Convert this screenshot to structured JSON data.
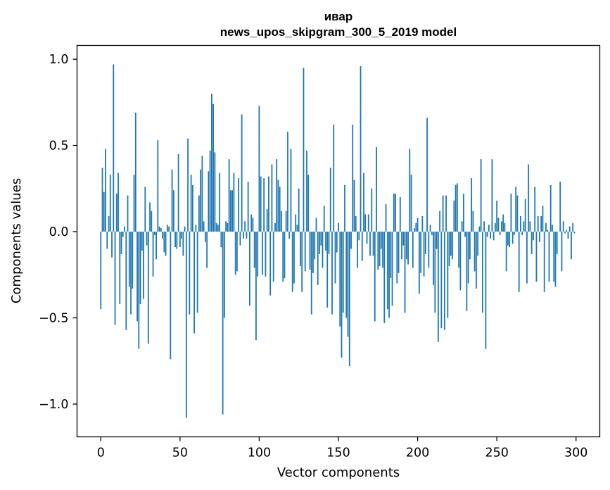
{
  "chart_data": {
    "type": "bar",
    "title": "ивар",
    "subtitle": "news_upos_skipgram_300_5_2019 model",
    "xlabel": "Vector components",
    "ylabel": "Components values",
    "xlim": [
      -15,
      315
    ],
    "ylim": [
      -1.19,
      1.08
    ],
    "xticks": [
      0,
      50,
      100,
      150,
      200,
      250,
      300
    ],
    "xtick_labels": [
      "0",
      "50",
      "100",
      "150",
      "200",
      "250",
      "300"
    ],
    "yticks": [
      1.0,
      0.5,
      0.0,
      -0.5,
      -1.0
    ],
    "ytick_labels": [
      "1.0",
      "0.5",
      "0.0",
      "−0.5",
      "−1.0"
    ],
    "bar_color": "#1f77b4",
    "grid": false,
    "values": [
      -0.45,
      0.37,
      0.23,
      0.48,
      -0.1,
      0.09,
      0.33,
      -0.15,
      0.97,
      -0.54,
      0.22,
      0.34,
      -0.42,
      -0.13,
      -0.03,
      0.03,
      -0.57,
      0.21,
      -0.32,
      -0.48,
      -0.33,
      0.33,
      0.69,
      -0.52,
      -0.68,
      -0.42,
      -0.11,
      -0.39,
      0.26,
      -0.08,
      -0.65,
      0.17,
      0.12,
      -0.26,
      -0.02,
      -0.16,
      0.53,
      0.03,
      0.02,
      -0.04,
      -0.12,
      -0.14,
      0.04,
      0.03,
      -0.74,
      0.36,
      0.24,
      -0.09,
      -0.1,
      0.45,
      -0.09,
      -0.04,
      -0.14,
      0.03,
      -1.08,
      0.54,
      -0.48,
      0.33,
      0.27,
      -0.59,
      0.04,
      -0.47,
      0.21,
      0.36,
      0.44,
      0.06,
      -0.06,
      -0.21,
      0.35,
      0.47,
      0.8,
      0.74,
      0.46,
      0.05,
      0.04,
      0.34,
      -0.09,
      -1.06,
      -0.5,
      0.06,
      0.05,
      0.42,
      0.24,
      0.24,
      0.34,
      -0.25,
      -0.23,
      0.31,
      -0.08,
      0.68,
      -0.04,
      0.06,
      -0.04,
      0.29,
      -0.43,
      0.1,
      0.08,
      -0.21,
      -0.63,
      -0.26,
      0.73,
      0.32,
      -0.25,
      0.31,
      -0.26,
      0.13,
      0.32,
      -0.37,
      0.39,
      -0.29,
      0.05,
      0.42,
      0.3,
      0.26,
      0.12,
      -0.29,
      -0.27,
      0.12,
      0.58,
      -0.04,
      0.48,
      -0.35,
      -0.3,
      0.1,
      0.04,
      0.25,
      -0.2,
      -0.35,
      0.95,
      -0.23,
      0.47,
      0.33,
      -0.22,
      -0.48,
      -0.24,
      -0.16,
      0.08,
      -0.31,
      -0.13,
      -0.08,
      -0.21,
      0.15,
      -0.11,
      -0.44,
      -0.13,
      0.37,
      -0.48,
      0.62,
      -0.3,
      -0.12,
      0.05,
      -0.55,
      -0.73,
      -0.47,
      0.27,
      -0.5,
      -0.61,
      -0.78,
      -0.1,
      0.62,
      0.3,
      0.09,
      -0.21,
      -0.05,
      0.96,
      -0.17,
      0.34,
      0.1,
      -0.07,
      0.1,
      -0.14,
      0.25,
      -0.14,
      -0.52,
      0.49,
      -0.22,
      -0.2,
      -0.1,
      -0.21,
      -0.53,
      0.16,
      -0.45,
      -0.5,
      -0.27,
      -0.43,
      0.22,
      0.22,
      -0.3,
      -0.24,
      0.2,
      -0.16,
      -0.08,
      -0.47,
      -0.16,
      -0.19,
      0.48,
      0.33,
      -0.21,
      0.02,
      0.05,
      0.08,
      -0.36,
      -0.24,
      0.09,
      -0.26,
      -0.13,
      0.66,
      -0.21,
      0.04,
      -0.02,
      -0.31,
      -0.47,
      -0.1,
      -0.64,
      0.12,
      -0.56,
      0.21,
      -0.57,
      0.21,
      -0.5,
      -0.2,
      -0.14,
      -0.16,
      0.18,
      0.27,
      0.28,
      -0.21,
      -0.34,
      0.06,
      0.22,
      -0.03,
      -0.46,
      -0.3,
      -0.16,
      0.31,
      0.12,
      -0.23,
      -0.33,
      -0.14,
      0.03,
      0.42,
      -0.47,
      0.06,
      -0.68,
      -0.03,
      0.04,
      -0.04,
      0.42,
      -0.05,
      0.05,
      0.18,
      0.08,
      -0.02,
      0.06,
      0.1,
      0.05,
      -0.23,
      -0.08,
      -0.09,
      0.22,
      -0.07,
      -0.02,
      0.26,
      0.21,
      -0.35,
      0.09,
      -0.02,
      0.06,
      0.19,
      -0.3,
      0.39,
      0.06,
      -0.13,
      -0.05,
      0.26,
      -0.29,
      0.09,
      -0.06,
      0.09,
      0.15,
      -0.35,
      0.05,
      0.01,
      -0.29,
      0.27,
      0.04,
      -0.29,
      -0.32,
      -0.13,
      0.0,
      0.29,
      -0.23,
      0.06,
      -0.01,
      0.01,
      -0.04,
      0.03,
      -0.16,
      0.05,
      -0.01
    ]
  }
}
